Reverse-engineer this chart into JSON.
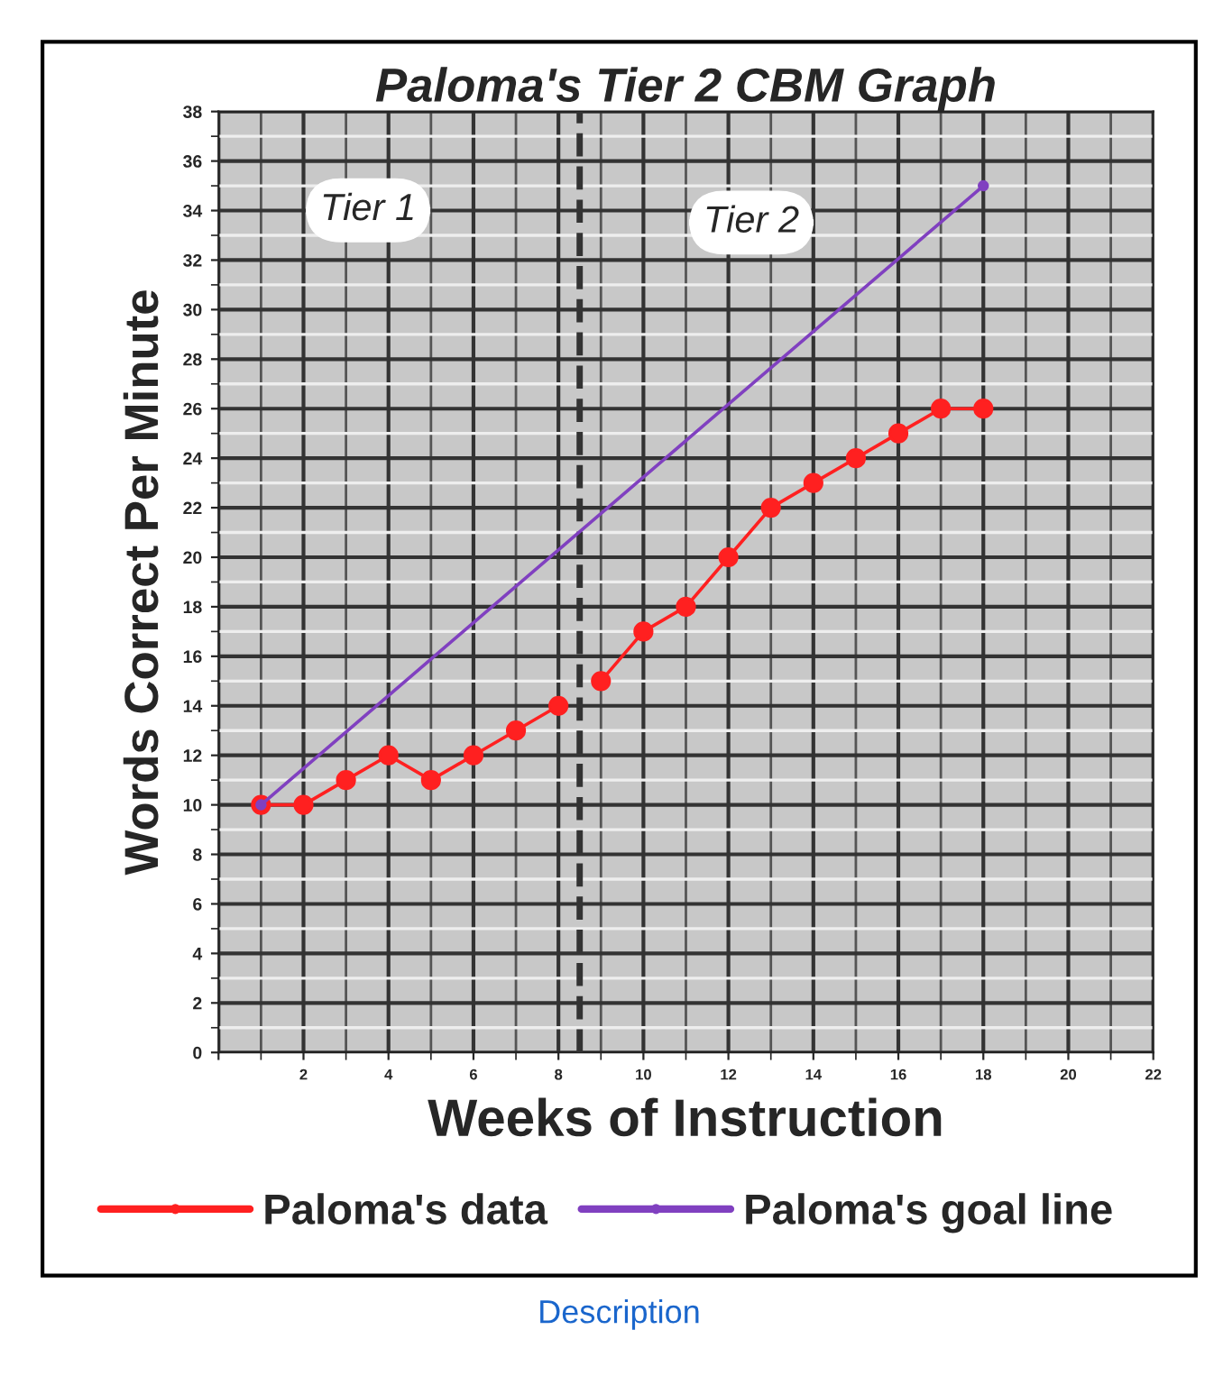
{
  "chart_data": {
    "type": "line",
    "title": "Paloma's Tier 2 CBM Graph",
    "xlabel": "Weeks of Instruction",
    "ylabel": "Words Correct Per Minute",
    "x": [
      1,
      2,
      3,
      4,
      5,
      6,
      7,
      8,
      8.5,
      9,
      10,
      11,
      12,
      13,
      14,
      15,
      16,
      17,
      18
    ],
    "series": [
      {
        "name": "Paloma's data",
        "color": "#ff2020",
        "values": [
          10,
          10,
          11,
          12,
          11,
          12,
          13,
          14,
          null,
          15,
          17,
          18,
          20,
          22,
          23,
          24,
          25,
          26,
          26
        ]
      },
      {
        "name": "Paloma's goal line",
        "color": "#8040c0",
        "x": [
          1,
          18
        ],
        "values": [
          10,
          35
        ]
      }
    ],
    "xlim": [
      0,
      22
    ],
    "xticks": [
      {
        "value": 0,
        "label": null
      },
      2,
      4,
      6,
      8,
      10,
      12,
      14,
      16,
      18,
      20,
      22
    ],
    "ylim": [
      0,
      38
    ],
    "yticks": [
      0,
      2,
      4,
      6,
      8,
      10,
      12,
      14,
      16,
      18,
      20,
      22,
      24,
      26,
      28,
      30,
      32,
      34,
      36,
      38
    ],
    "ref_lines": [
      {
        "axis": "x",
        "value": 8.5,
        "label": null,
        "color": "#333333",
        "line_style": "dashed"
      }
    ],
    "annotations": [
      "Tier 1",
      "Tier 2",
      "Description"
    ],
    "grid": true,
    "legend": "bottom",
    "marker": "circle",
    "line_style": "solid"
  }
}
